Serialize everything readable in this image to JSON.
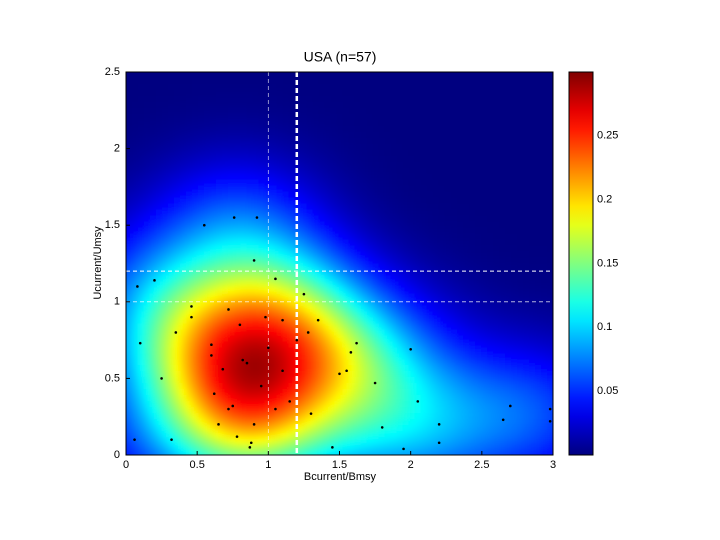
{
  "chart_data": {
    "type": "density-scatter",
    "title": "USA (n=57)",
    "x_label": "Bcurrent/Bmsy",
    "y_label": "Ucurrent/Umsy",
    "xlim": [
      0,
      3
    ],
    "ylim": [
      0,
      2.5
    ],
    "xticks": [
      0,
      0.5,
      1,
      1.5,
      2,
      2.5,
      3
    ],
    "yticks": [
      0,
      0.5,
      1,
      1.5,
      2,
      2.5
    ],
    "clim": [
      0,
      0.3
    ],
    "cticks": [
      0.05,
      0.1,
      0.15,
      0.2,
      0.25
    ],
    "colormap": "jet",
    "point_color": "#000000",
    "line_color": "#ffffff",
    "vlines": [
      1,
      1.2
    ],
    "hlines": [
      1,
      1.2
    ],
    "x": [
      0.06,
      0.1,
      0.08,
      0.2,
      0.32,
      0.35,
      0.46,
      0.46,
      0.55,
      0.6,
      0.62,
      0.65,
      0.68,
      0.72,
      0.75,
      0.76,
      0.78,
      0.8,
      0.82,
      0.85,
      0.87,
      0.88,
      0.9,
      0.9,
      0.92,
      0.95,
      0.98,
      1.0,
      1.05,
      1.1,
      1.1,
      1.15,
      1.2,
      1.25,
      1.28,
      1.3,
      1.35,
      1.45,
      1.5,
      1.55,
      1.58,
      1.62,
      1.75,
      1.8,
      1.95,
      2.0,
      2.05,
      2.2,
      2.2,
      2.65,
      2.7,
      2.98,
      2.98,
      0.6,
      0.72,
      1.05,
      0.25
    ],
    "y": [
      0.1,
      0.73,
      1.1,
      1.14,
      0.1,
      0.8,
      0.9,
      0.97,
      1.5,
      0.72,
      0.4,
      0.2,
      0.56,
      0.3,
      0.32,
      1.55,
      0.12,
      0.85,
      0.62,
      0.6,
      0.05,
      0.08,
      1.27,
      0.2,
      1.55,
      0.45,
      0.9,
      0.7,
      0.3,
      0.55,
      0.88,
      0.35,
      0.75,
      1.05,
      0.8,
      0.27,
      0.88,
      0.05,
      0.53,
      0.55,
      0.67,
      0.73,
      0.47,
      0.18,
      0.04,
      0.69,
      0.35,
      0.2,
      0.08,
      0.23,
      0.32,
      0.3,
      0.22,
      0.65,
      0.95,
      1.15,
      0.5
    ]
  }
}
